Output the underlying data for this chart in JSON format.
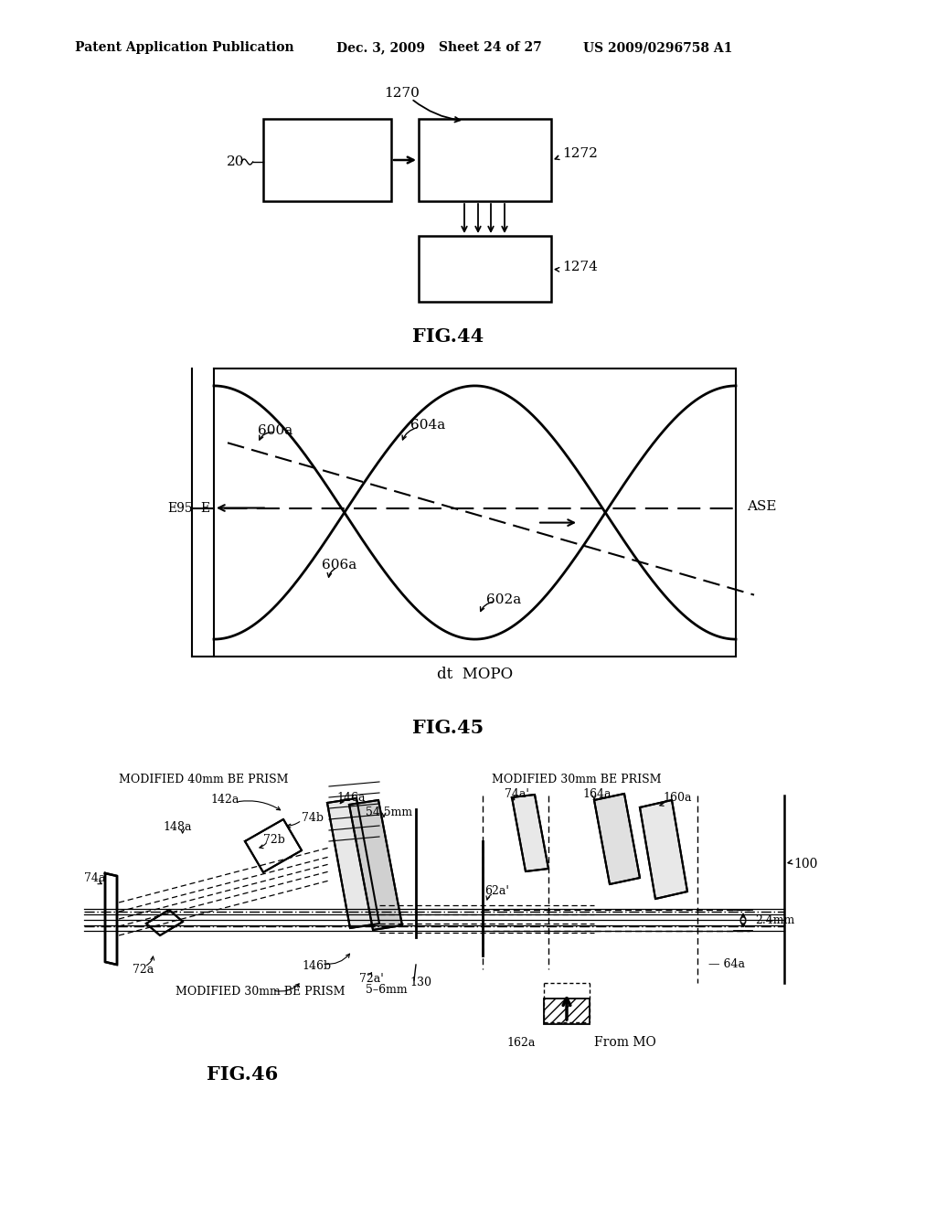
{
  "bg_color": "#ffffff",
  "header_text": "Patent Application Publication",
  "header_date": "Dec. 3, 2009",
  "header_sheet": "Sheet 24 of 27",
  "header_patent": "US 2009/0296758 A1",
  "fig44_title": "FIG.44",
  "fig45_title": "FIG.45",
  "fig46_title": "FIG.46",
  "fig45_xlabel": "dt  MOPO",
  "fig45_ylabel_e95": "E95",
  "fig45_ylabel_e": "E",
  "fig45_label_ase": "ASE"
}
